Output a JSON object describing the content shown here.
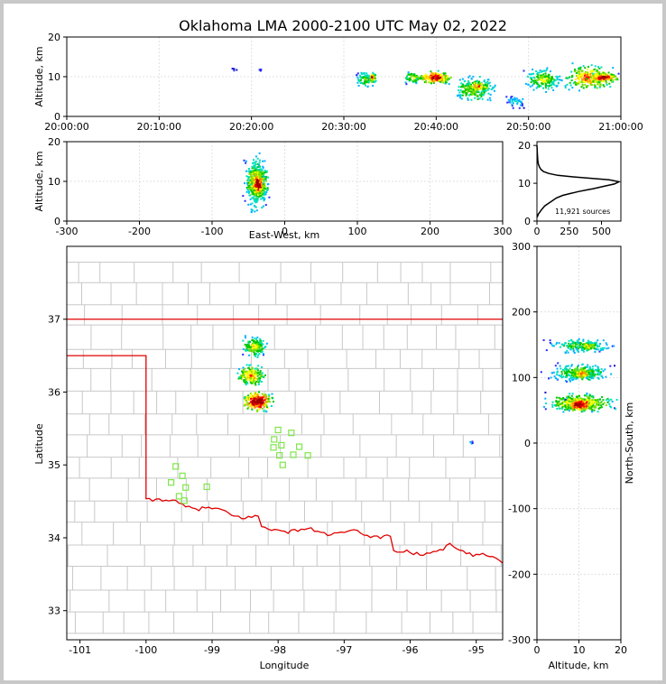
{
  "chart_data": [
    {
      "panel": "time-height",
      "type": "heatmap",
      "title": "Oklahoma LMA 2000-2100 UTC May 02, 2022",
      "ylabel": "Altitude, km",
      "ylim": [
        0,
        20
      ],
      "yticks": [
        "0",
        "10",
        "20"
      ],
      "xticks": [
        "20:00:00",
        "20:10:00",
        "20:20:00",
        "20:30:00",
        "20:40:00",
        "20:50:00",
        "21:00:00"
      ],
      "xlim_min": [
        0,
        60
      ],
      "grid": true,
      "density_clusters": [
        {
          "t": [
            17.5,
            18.5
          ],
          "alt": [
            11,
            12.5
          ],
          "n": 4,
          "peak": 0.15
        },
        {
          "t": [
            20.5,
            21.2
          ],
          "alt": [
            11.5,
            12.5
          ],
          "n": 4,
          "peak": 0.15
        },
        {
          "t": [
            31,
            33.5
          ],
          "alt": [
            7,
            12
          ],
          "n": 80,
          "peak": 0.5
        },
        {
          "t": [
            32.5,
            33.5
          ],
          "alt": [
            8.5,
            11.5
          ],
          "n": 50,
          "peak": 0.8
        },
        {
          "t": [
            36,
            39
          ],
          "alt": [
            8,
            12
          ],
          "n": 60,
          "peak": 0.55
        },
        {
          "t": [
            37.5,
            42
          ],
          "alt": [
            8,
            12
          ],
          "n": 160,
          "peak": 0.9
        },
        {
          "t": [
            41,
            47
          ],
          "alt": [
            3,
            11
          ],
          "n": 200,
          "peak": 0.55
        },
        {
          "t": [
            43,
            46
          ],
          "alt": [
            6,
            9.5
          ],
          "n": 60,
          "peak": 0.8
        },
        {
          "t": [
            47,
            50
          ],
          "alt": [
            2,
            6
          ],
          "n": 40,
          "peak": 0.3
        },
        {
          "t": [
            49,
            54
          ],
          "alt": [
            6,
            13
          ],
          "n": 170,
          "peak": 0.55
        },
        {
          "t": [
            53,
            60
          ],
          "alt": [
            6,
            14
          ],
          "n": 260,
          "peak": 0.75
        },
        {
          "t": [
            56,
            60
          ],
          "alt": [
            8.5,
            11.5
          ],
          "n": 120,
          "peak": 0.95
        }
      ]
    },
    {
      "panel": "east-west",
      "type": "heatmap",
      "xlabel": "East-West, km",
      "ylabel": "Altitude, km",
      "xlim": [
        -300,
        300
      ],
      "ylim": [
        0,
        20
      ],
      "xticks": [
        "-300",
        "-200",
        "-100",
        "0",
        "100",
        "200",
        "300"
      ],
      "yticks": [
        "0",
        "10",
        "20"
      ],
      "grid": true,
      "density_clusters": [
        {
          "x": [
            -60,
            -20
          ],
          "alt": [
            0,
            20
          ],
          "n": 260,
          "peak": 0.5
        },
        {
          "x": [
            -58,
            -20
          ],
          "alt": [
            5,
            15
          ],
          "n": 320,
          "peak": 0.8
        },
        {
          "x": [
            -48,
            -28
          ],
          "alt": [
            6,
            13
          ],
          "n": 200,
          "peak": 1.0
        }
      ]
    },
    {
      "panel": "altitude-histogram",
      "type": "line",
      "xlim": [
        0,
        650
      ],
      "ylim": [
        0,
        21
      ],
      "xticks": [
        "0",
        "250",
        "500"
      ],
      "yticks": [
        "0",
        "10",
        "20"
      ],
      "annotation": "11,921 sources",
      "x": [
        0,
        5,
        10,
        20,
        35,
        60,
        85,
        120,
        150,
        200,
        260,
        320,
        380,
        440,
        520,
        600,
        635,
        560,
        420,
        280,
        160,
        90,
        50,
        30,
        18,
        10,
        6,
        4,
        2,
        0
      ],
      "y": [
        1,
        1.3,
        1.8,
        2.3,
        3,
        4,
        4.6,
        5.4,
        6.1,
        6.8,
        7.3,
        7.8,
        8.2,
        8.6,
        9.2,
        9.8,
        10.4,
        10.9,
        11.3,
        11.7,
        12.1,
        12.6,
        13.1,
        13.7,
        14.4,
        15.2,
        16.2,
        17.2,
        18.5,
        20
      ]
    },
    {
      "panel": "plan-view",
      "type": "scatter",
      "xlabel": "Longitude",
      "ylabel": "Latitude",
      "xlim": [
        -101.2,
        -94.6
      ],
      "ylim": [
        32.6,
        38.0
      ],
      "xticks": [
        "-101",
        "-100",
        "-99",
        "-98",
        "-97",
        "-96",
        "-95"
      ],
      "yticks": [
        "33",
        "34",
        "35",
        "36",
        "37"
      ],
      "stations": [
        [
          -99.55,
          34.98
        ],
        [
          -99.45,
          34.85
        ],
        [
          -99.62,
          34.76
        ],
        [
          -99.4,
          34.69
        ],
        [
          -99.5,
          34.57
        ],
        [
          -99.42,
          34.51
        ],
        [
          -99.08,
          34.7
        ],
        [
          -98.0,
          35.48
        ],
        [
          -97.8,
          35.44
        ],
        [
          -98.06,
          35.35
        ],
        [
          -97.95,
          35.27
        ],
        [
          -98.07,
          35.24
        ],
        [
          -97.68,
          35.25
        ],
        [
          -97.98,
          35.13
        ],
        [
          -97.77,
          35.14
        ],
        [
          -97.55,
          35.13
        ],
        [
          -97.93,
          35.0
        ]
      ],
      "density_clusters": [
        {
          "lon": [
            -98.6,
            -98.15
          ],
          "lat": [
            36.45,
            36.82
          ],
          "n": 150,
          "peak": 0.6
        },
        {
          "lon": [
            -98.7,
            -98.15
          ],
          "lat": [
            36.05,
            36.42
          ],
          "n": 170,
          "peak": 0.7
        },
        {
          "lon": [
            -98.6,
            -98.05
          ],
          "lat": [
            35.72,
            36.05
          ],
          "n": 260,
          "peak": 1.0
        },
        {
          "lon": [
            -95.15,
            -95.05
          ],
          "lat": [
            35.28,
            35.38
          ],
          "n": 4,
          "peak": 0.3
        }
      ]
    },
    {
      "panel": "north-south",
      "type": "heatmap",
      "xlabel": "Altitude, km",
      "ylabel": "North-South, km",
      "xlim": [
        0,
        20
      ],
      "ylim": [
        -300,
        300
      ],
      "xticks": [
        "0",
        "10",
        "20"
      ],
      "yticks": [
        "-300",
        "-200",
        "-100",
        "0",
        "100",
        "200",
        "300"
      ],
      "grid": true,
      "density_clusters": [
        {
          "alt": [
            0,
            20
          ],
          "ns": [
            45,
            80
          ],
          "n": 360,
          "peak": 0.7
        },
        {
          "alt": [
            6,
            14
          ],
          "ns": [
            48,
            72
          ],
          "n": 220,
          "peak": 1.0
        },
        {
          "alt": [
            0,
            20
          ],
          "ns": [
            92,
            125
          ],
          "n": 240,
          "peak": 0.5
        },
        {
          "alt": [
            7,
            14
          ],
          "ns": [
            95,
            120
          ],
          "n": 100,
          "peak": 0.75
        },
        {
          "alt": [
            0,
            20
          ],
          "ns": [
            135,
            165
          ],
          "n": 160,
          "peak": 0.45
        },
        {
          "alt": [
            9,
            15
          ],
          "ns": [
            138,
            160
          ],
          "n": 60,
          "peak": 0.65
        }
      ]
    }
  ]
}
